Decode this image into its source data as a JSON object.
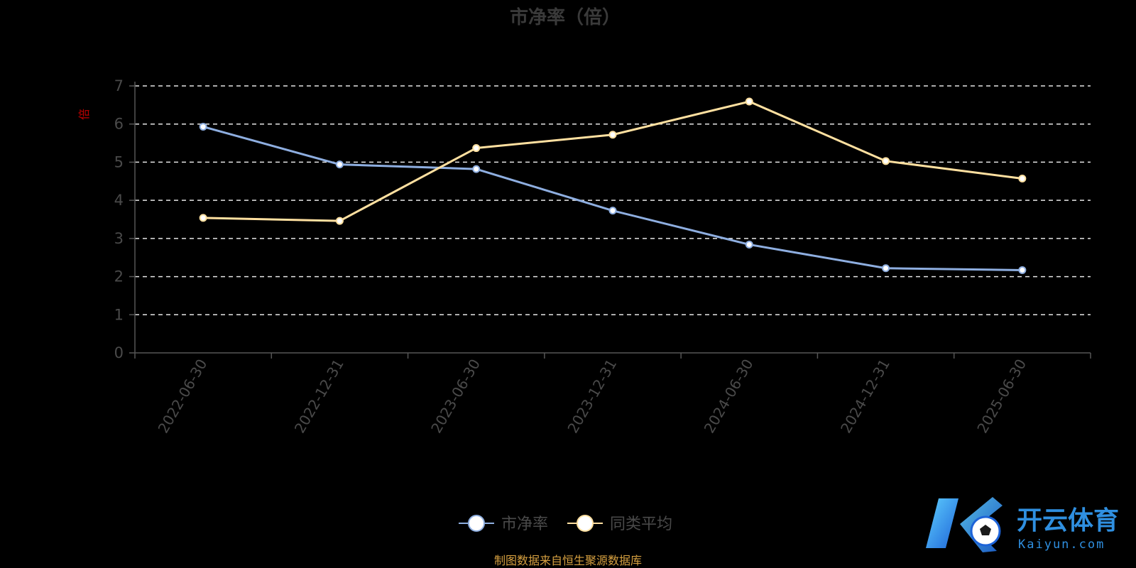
{
  "chart_data": {
    "type": "line",
    "title": "市净率（倍）",
    "ylabel": "倍",
    "xlabel": "",
    "categories": [
      "2022-06-30",
      "2022-12-31",
      "2023-06-30",
      "2023-12-31",
      "2024-06-30",
      "2024-12-31",
      "2025-06-30"
    ],
    "series": [
      {
        "name": "市净率",
        "color": "#8eaee0",
        "values": [
          5.93,
          4.94,
          4.82,
          3.73,
          2.84,
          2.22,
          2.17
        ]
      },
      {
        "name": "同类平均",
        "color": "#ffe0a0",
        "values": [
          3.54,
          3.46,
          5.37,
          5.72,
          6.59,
          5.03,
          4.57
        ]
      }
    ],
    "ylim": [
      0,
      7
    ],
    "yticks": [
      "0",
      "1",
      "2",
      "3",
      "4",
      "5",
      "6",
      "7"
    ],
    "grid": true,
    "grid_style": "dashed",
    "legend_position": "bottom-center"
  },
  "source_note": "制图数据来自恒生聚源数据库",
  "watermark": {
    "brand": "开云体育",
    "domain": "Kaiyun.com"
  }
}
